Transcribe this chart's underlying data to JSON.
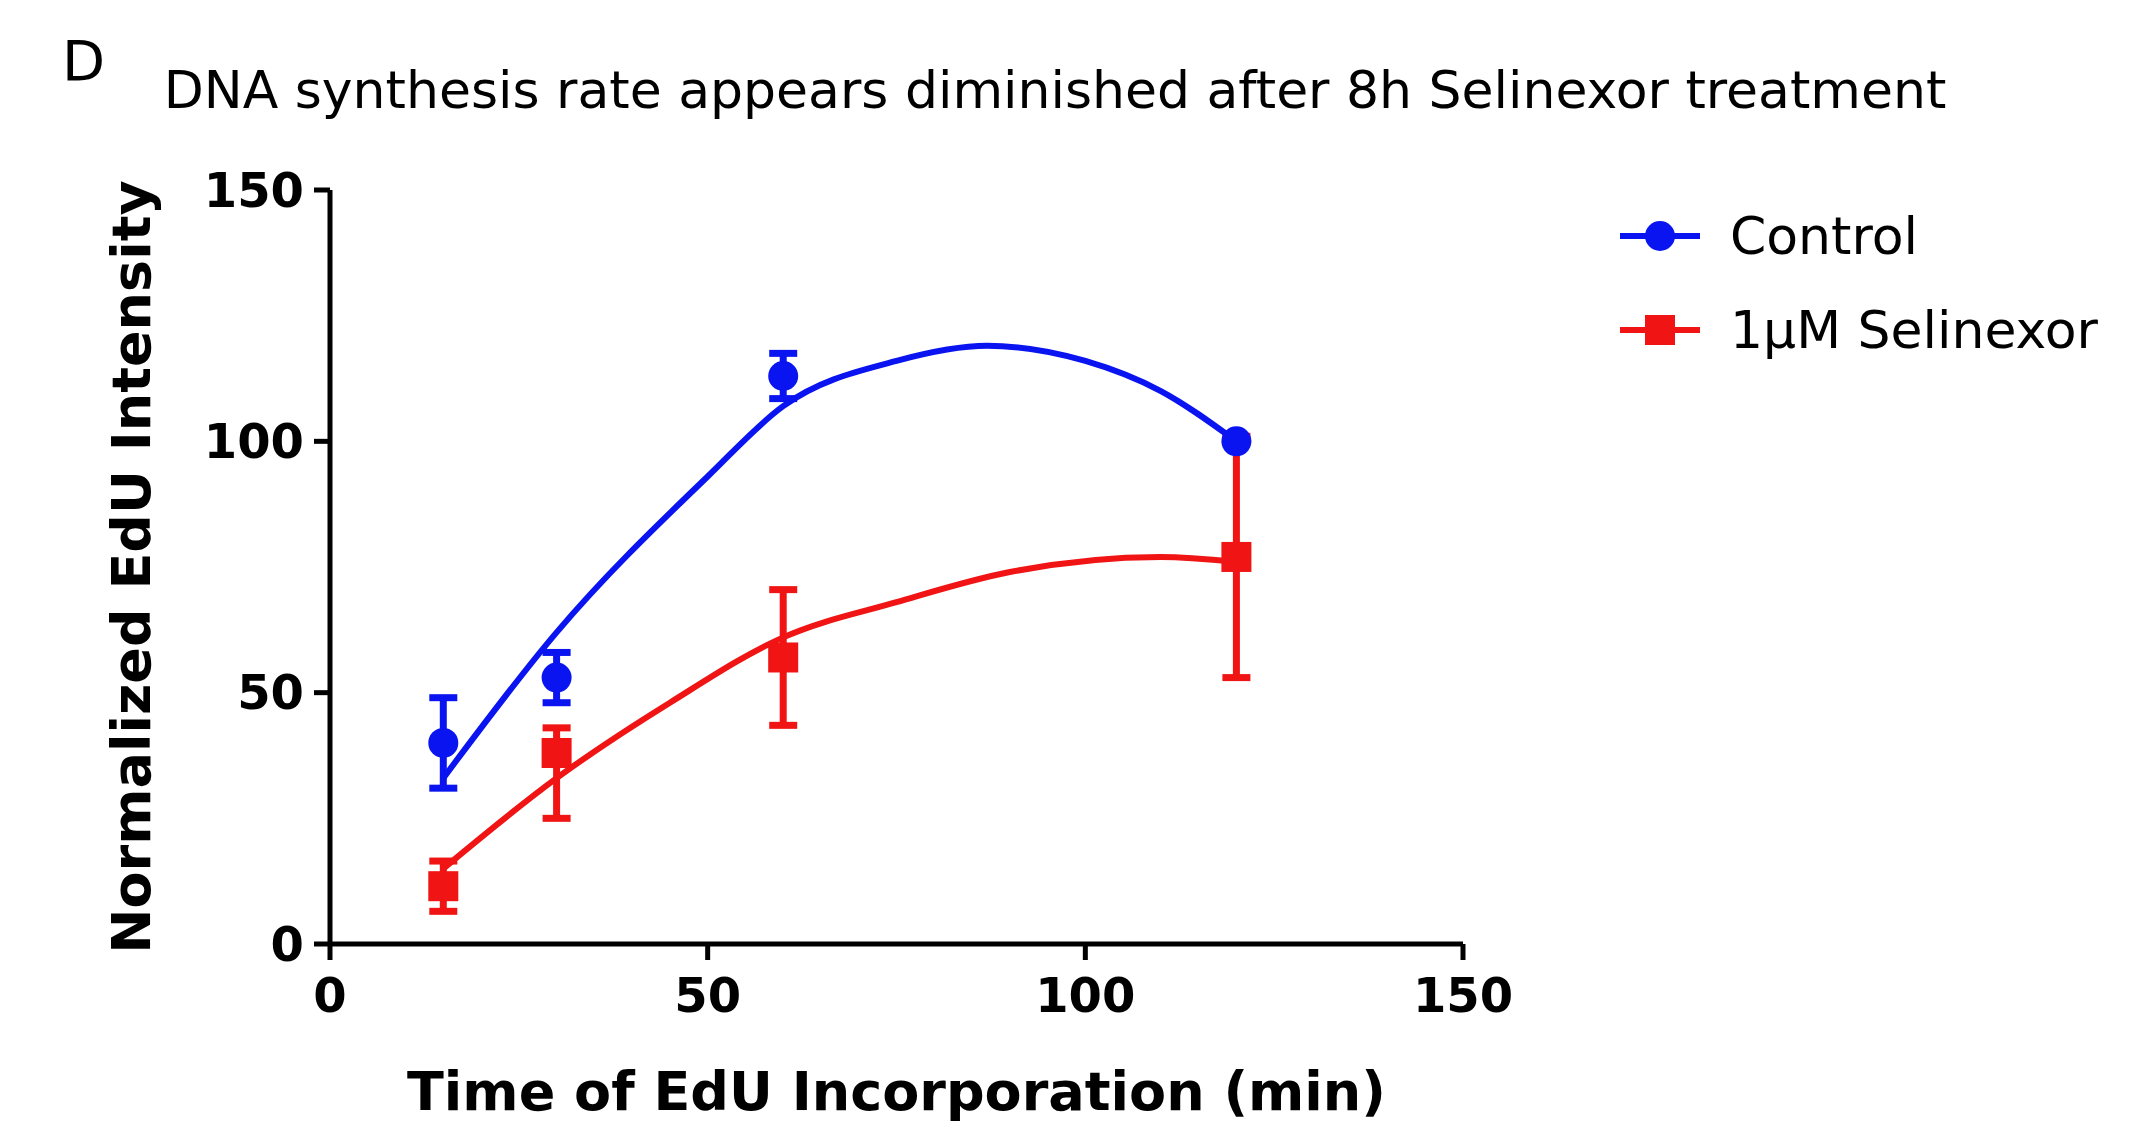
{
  "chart_data": {
    "type": "scatter",
    "title": "DNA synthesis rate appears diminished after 8h Selinexor treatment",
    "xlabel": "Time of EdU Incorporation (min)",
    "ylabel": "Normalized EdU Intensity",
    "annotations": [
      "D"
    ],
    "xlim": [
      0,
      150
    ],
    "xticks": [
      0,
      50,
      100,
      150
    ],
    "ylim": [
      0,
      150
    ],
    "yticks": [
      0,
      50,
      100,
      150
    ],
    "legend": "top right",
    "grid": false,
    "series": [
      {
        "type": "line",
        "color": "#0a14f0",
        "marker": "none",
        "x": [
          15,
          30,
          50,
          60,
          75,
          87,
          100,
          110,
          120
        ],
        "values": [
          33,
          62,
          93,
          107,
          116,
          119,
          116,
          110,
          100
        ]
      },
      {
        "type": "line",
        "color": "#f01414",
        "marker": "none",
        "x": [
          15,
          30,
          45,
          60,
          75,
          90,
          110,
          120
        ],
        "values": [
          15,
          33,
          48,
          61,
          68,
          74,
          77,
          76
        ]
      },
      {
        "name": "Control",
        "color": "#0a14f0",
        "marker": "circle",
        "x": [
          15,
          30,
          60,
          120
        ],
        "values": [
          40,
          53,
          113,
          100
        ],
        "errors": [
          9,
          5,
          4.5,
          null
        ]
      },
      {
        "name": "1µM Selinexor",
        "color": "#f01414",
        "marker": "square",
        "x": [
          15,
          30,
          60,
          120
        ],
        "values": [
          11.5,
          38,
          57,
          77
        ],
        "errors": [
          5,
          [
            25,
            43
          ],
          13.5,
          24
        ]
      }
    ]
  }
}
